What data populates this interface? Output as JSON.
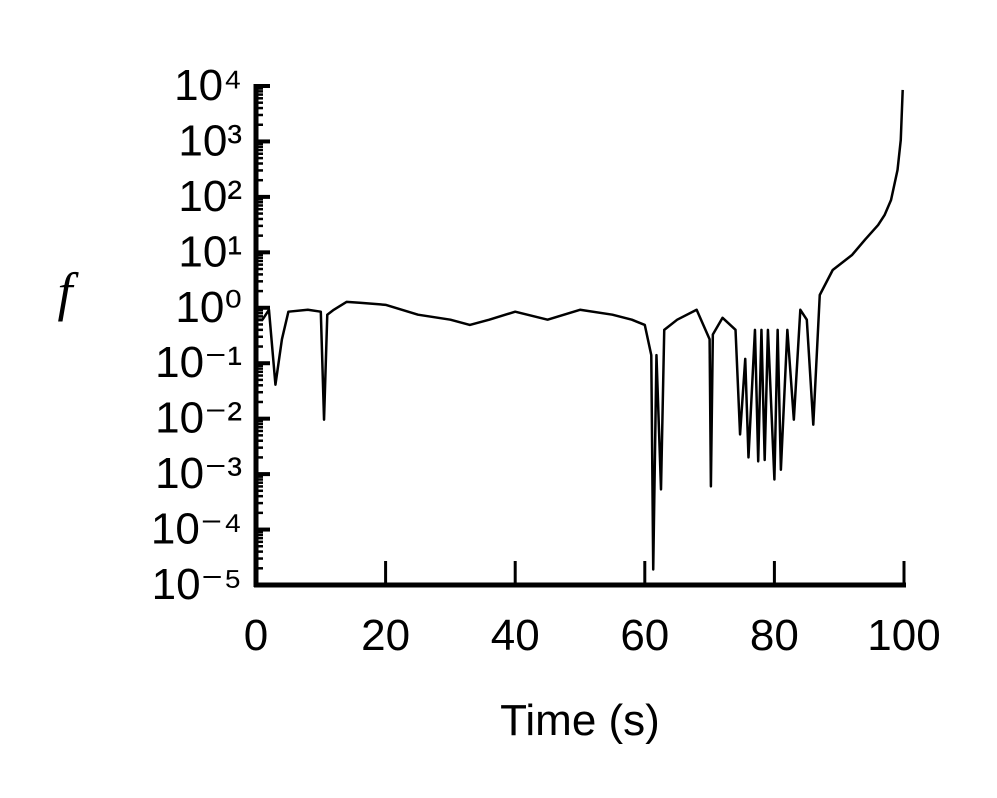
{
  "chart_data": {
    "type": "line",
    "xlabel": "Time (s)",
    "ylabel": "f",
    "yscale": "log",
    "xlim": [
      0,
      100
    ],
    "ylim": [
      1e-05,
      10000
    ],
    "xticks": [
      0,
      20,
      40,
      60,
      80,
      100
    ],
    "yticks": [
      {
        "value": 1e-05,
        "label": "10⁻⁵"
      },
      {
        "value": 0.0001,
        "label": "10⁻⁴"
      },
      {
        "value": 0.001,
        "label": "10⁻³"
      },
      {
        "value": 0.01,
        "label": "10⁻²"
      },
      {
        "value": 0.1,
        "label": "10⁻¹"
      },
      {
        "value": 1,
        "label": "10⁰"
      },
      {
        "value": 10,
        "label": "10¹"
      },
      {
        "value": 100,
        "label": "10²"
      },
      {
        "value": 1000,
        "label": "10³"
      },
      {
        "value": 10000,
        "label": "10⁴"
      }
    ],
    "grid": false,
    "series": [
      {
        "color": "#000000",
        "x": [
          0,
          1,
          2,
          3,
          4,
          5,
          8,
          10,
          10.5,
          11,
          12,
          14,
          16,
          20,
          25,
          30,
          33,
          36,
          40,
          45,
          50,
          55,
          58,
          60,
          61,
          61.3,
          61.8,
          62.5,
          63,
          65,
          68,
          70,
          70.2,
          70.5,
          72,
          74,
          74.7,
          75.5,
          76,
          77,
          77.5,
          78,
          78.5,
          79,
          80,
          80.5,
          81,
          82,
          83,
          84,
          85,
          86,
          87,
          89,
          92,
          94,
          96,
          97,
          98,
          99,
          99.5,
          99.8
        ],
        "values": [
          0.61,
          0.61,
          0.92,
          0.041,
          0.27,
          0.85,
          0.92,
          0.85,
          0.0096,
          0.75,
          0.92,
          1.28,
          1.23,
          1.13,
          0.75,
          0.61,
          0.49,
          0.61,
          0.85,
          0.61,
          0.92,
          0.75,
          0.61,
          0.49,
          0.14,
          1.9e-05,
          0.14,
          0.00053,
          0.4,
          0.61,
          0.92,
          0.27,
          0.0006,
          0.33,
          0.66,
          0.4,
          0.0052,
          0.12,
          0.002,
          0.4,
          0.0017,
          0.4,
          0.0018,
          0.4,
          0.0008,
          0.4,
          0.0012,
          0.4,
          0.0096,
          0.92,
          0.61,
          0.0078,
          1.7,
          4.8,
          9,
          17,
          31,
          47,
          88,
          306,
          1060,
          8500
        ]
      }
    ]
  }
}
